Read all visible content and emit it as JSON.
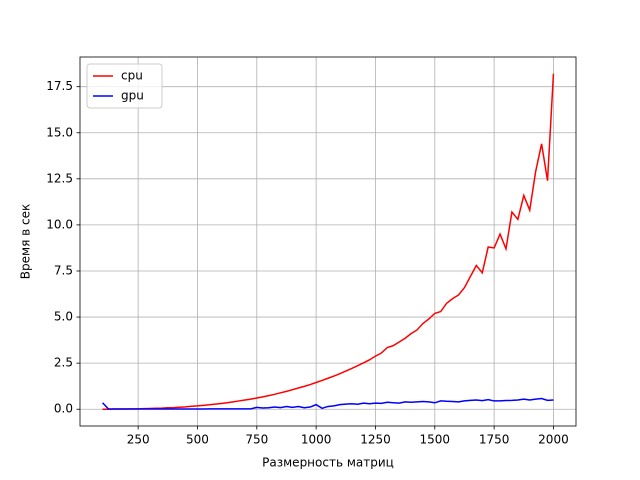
{
  "chart_data": {
    "type": "line",
    "xlabel": "Размерность матриц",
    "ylabel": "Время в сек",
    "x": [
      100,
      125,
      150,
      175,
      200,
      225,
      250,
      275,
      300,
      325,
      350,
      375,
      400,
      425,
      450,
      475,
      500,
      525,
      550,
      575,
      600,
      625,
      650,
      675,
      700,
      725,
      750,
      775,
      800,
      825,
      850,
      875,
      900,
      925,
      950,
      975,
      1000,
      1025,
      1050,
      1075,
      1100,
      1125,
      1150,
      1175,
      1200,
      1225,
      1250,
      1275,
      1300,
      1325,
      1350,
      1375,
      1400,
      1425,
      1450,
      1475,
      1500,
      1525,
      1550,
      1575,
      1600,
      1625,
      1650,
      1675,
      1700,
      1725,
      1750,
      1775,
      1800,
      1825,
      1850,
      1875,
      1900,
      1925,
      1950,
      1975,
      2000
    ],
    "series": [
      {
        "name": "cpu",
        "color": "#ff0000",
        "values": [
          0.0,
          0.0,
          0.01,
          0.01,
          0.01,
          0.02,
          0.02,
          0.03,
          0.04,
          0.05,
          0.06,
          0.08,
          0.09,
          0.11,
          0.13,
          0.16,
          0.18,
          0.21,
          0.24,
          0.28,
          0.31,
          0.35,
          0.4,
          0.45,
          0.5,
          0.55,
          0.61,
          0.67,
          0.74,
          0.81,
          0.89,
          0.97,
          1.06,
          1.15,
          1.24,
          1.34,
          1.45,
          1.56,
          1.68,
          1.8,
          1.93,
          2.07,
          2.21,
          2.36,
          2.52,
          2.68,
          2.88,
          3.05,
          3.35,
          3.45,
          3.65,
          3.85,
          4.1,
          4.3,
          4.65,
          4.9,
          5.2,
          5.3,
          5.75,
          6.0,
          6.2,
          6.6,
          7.2,
          7.8,
          7.4,
          8.8,
          8.75,
          9.5,
          8.7,
          10.7,
          10.3,
          11.6,
          10.8,
          12.9,
          14.4,
          12.4,
          18.2
        ]
      },
      {
        "name": "gpu",
        "color": "#0000ff",
        "values": [
          0.35,
          0.01,
          0.01,
          0.01,
          0.01,
          0.01,
          0.01,
          0.01,
          0.01,
          0.01,
          0.01,
          0.01,
          0.01,
          0.01,
          0.01,
          0.01,
          0.01,
          0.01,
          0.02,
          0.02,
          0.02,
          0.02,
          0.02,
          0.02,
          0.02,
          0.02,
          0.1,
          0.07,
          0.08,
          0.12,
          0.09,
          0.15,
          0.1,
          0.15,
          0.08,
          0.12,
          0.25,
          0.05,
          0.15,
          0.18,
          0.25,
          0.28,
          0.3,
          0.27,
          0.33,
          0.3,
          0.33,
          0.32,
          0.38,
          0.35,
          0.33,
          0.4,
          0.38,
          0.4,
          0.42,
          0.4,
          0.35,
          0.45,
          0.43,
          0.42,
          0.4,
          0.45,
          0.48,
          0.5,
          0.47,
          0.52,
          0.45,
          0.45,
          0.47,
          0.48,
          0.5,
          0.55,
          0.5,
          0.55,
          0.58,
          0.48,
          0.5
        ]
      }
    ],
    "xlim": [
      5,
      2095
    ],
    "ylim": [
      -0.91,
      19.11
    ],
    "xticks": [
      250,
      500,
      750,
      1000,
      1250,
      1500,
      1750,
      2000
    ],
    "yticks": [
      {
        "value": 0,
        "label": "0.0"
      },
      2.5,
      {
        "value": 5,
        "label": "5.0"
      },
      7.5,
      {
        "value": 10,
        "label": "10.0"
      },
      12.5,
      {
        "value": 15,
        "label": "15.0"
      },
      17.5
    ],
    "grid": true,
    "legend": "upper left"
  }
}
